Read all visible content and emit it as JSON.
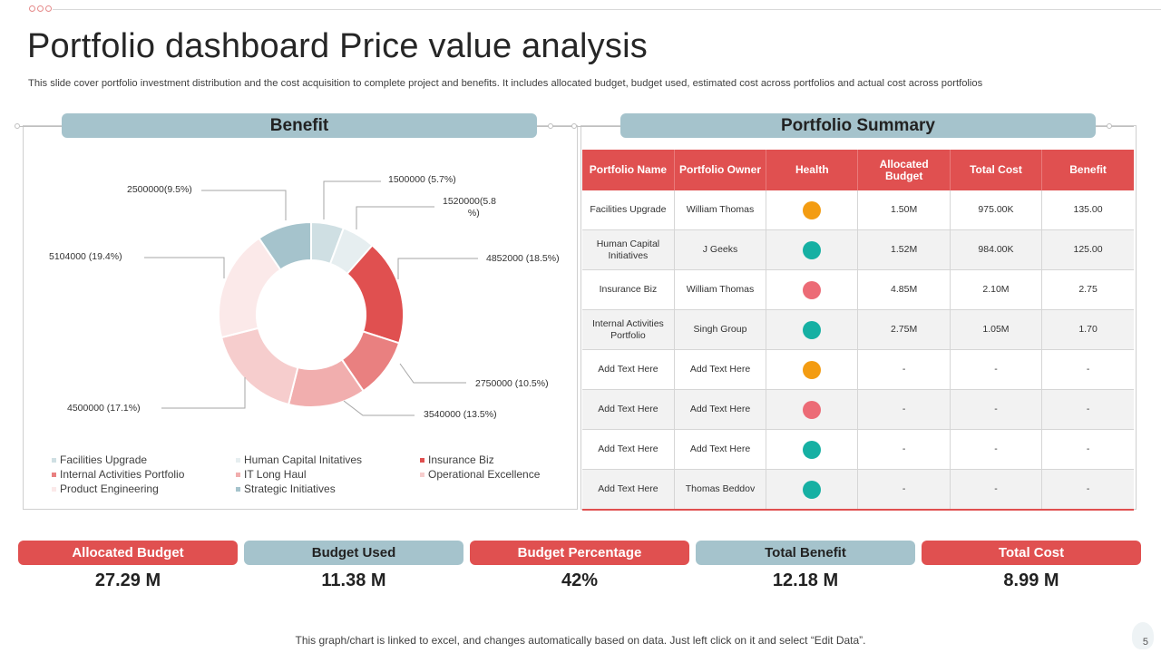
{
  "title": "Portfolio dashboard Price value analysis",
  "subtitle": "This slide cover portfolio investment distribution and the cost acquisition to complete project and benefits. It includes allocated budget, budget used, estimated cost across portfolios and actual cost across portfolios",
  "benefit_header": "Benefit",
  "summary_header": "Portfolio Summary",
  "chart_data": {
    "type": "pie",
    "subtype": "donut",
    "title": "Benefit",
    "categories": [
      "Facilities Upgrade",
      "Human Capital Initatives",
      "Insurance Biz",
      "Internal Activities Portfolio",
      "IT Long Haul",
      "Operational Excellence",
      "Product Engineering",
      "Strategic Initiatives"
    ],
    "values": [
      1500000,
      1520000,
      4852000,
      2750000,
      3540000,
      4500000,
      5104000,
      2500000
    ],
    "data_labels": [
      "1500000 (5.7%)",
      "1520000(5.8 %)",
      "4852000 (18.5%)",
      "2750000 (10.5%)",
      "3540000 (13.5%)",
      "4500000 (17.1%)",
      "5104000 (19.4%)",
      "2500000(9.5%)"
    ],
    "colors": [
      "#cfdfe3",
      "#e6eef0",
      "#e05050",
      "#e98080",
      "#f1aeae",
      "#f6cdcd",
      "#fbe9e9",
      "#a5c3cc"
    ],
    "legend": "bottom"
  },
  "table": {
    "columns": [
      "Portfolio Name",
      "Portfolio Owner",
      "Health",
      "Allocated Budget",
      "Total Cost",
      "Benefit"
    ],
    "rows": [
      {
        "name": "Facilities Upgrade",
        "owner": "William Thomas",
        "health": "#f39c12",
        "budget": "1.50M",
        "cost": "975.00K",
        "benefit": "135.00"
      },
      {
        "name": "Human Capital Initiatives",
        "owner": "J Geeks",
        "health": "#16b0a3",
        "budget": "1.52M",
        "cost": "984.00K",
        "benefit": "125.00"
      },
      {
        "name": "Insurance Biz",
        "owner": "William Thomas",
        "health": "#ec6b76",
        "budget": "4.85M",
        "cost": "2.10M",
        "benefit": "2.75"
      },
      {
        "name": "Internal Activities Portfolio",
        "owner": "Singh Group",
        "health": "#16b0a3",
        "budget": "2.75M",
        "cost": "1.05M",
        "benefit": "1.70"
      },
      {
        "name": "Add Text Here",
        "owner": "Add Text Here",
        "health": "#f39c12",
        "budget": "-",
        "cost": "-",
        "benefit": "-"
      },
      {
        "name": "Add Text Here",
        "owner": "Add Text Here",
        "health": "#ec6b76",
        "budget": "-",
        "cost": "-",
        "benefit": "-"
      },
      {
        "name": "Add Text Here",
        "owner": "Add Text Here",
        "health": "#16b0a3",
        "budget": "-",
        "cost": "-",
        "benefit": "-"
      },
      {
        "name": "Add Text Here",
        "owner": "Thomas Beddov",
        "health": "#16b0a3",
        "budget": "-",
        "cost": "-",
        "benefit": "-"
      }
    ]
  },
  "kpis": [
    {
      "label": "Allocated Budget",
      "value": "27.29 M",
      "style": "red"
    },
    {
      "label": "Budget Used",
      "value": "11.38 M",
      "style": "blue"
    },
    {
      "label": "Budget Percentage",
      "value": "42%",
      "style": "red"
    },
    {
      "label": "Total Benefit",
      "value": "12.18 M",
      "style": "blue"
    },
    {
      "label": "Total Cost",
      "value": "8.99 M",
      "style": "red"
    }
  ],
  "footer": "This graph/chart is linked to excel, and changes automatically based on data. Just left click on it and select “Edit Data”.",
  "page_number": "5"
}
